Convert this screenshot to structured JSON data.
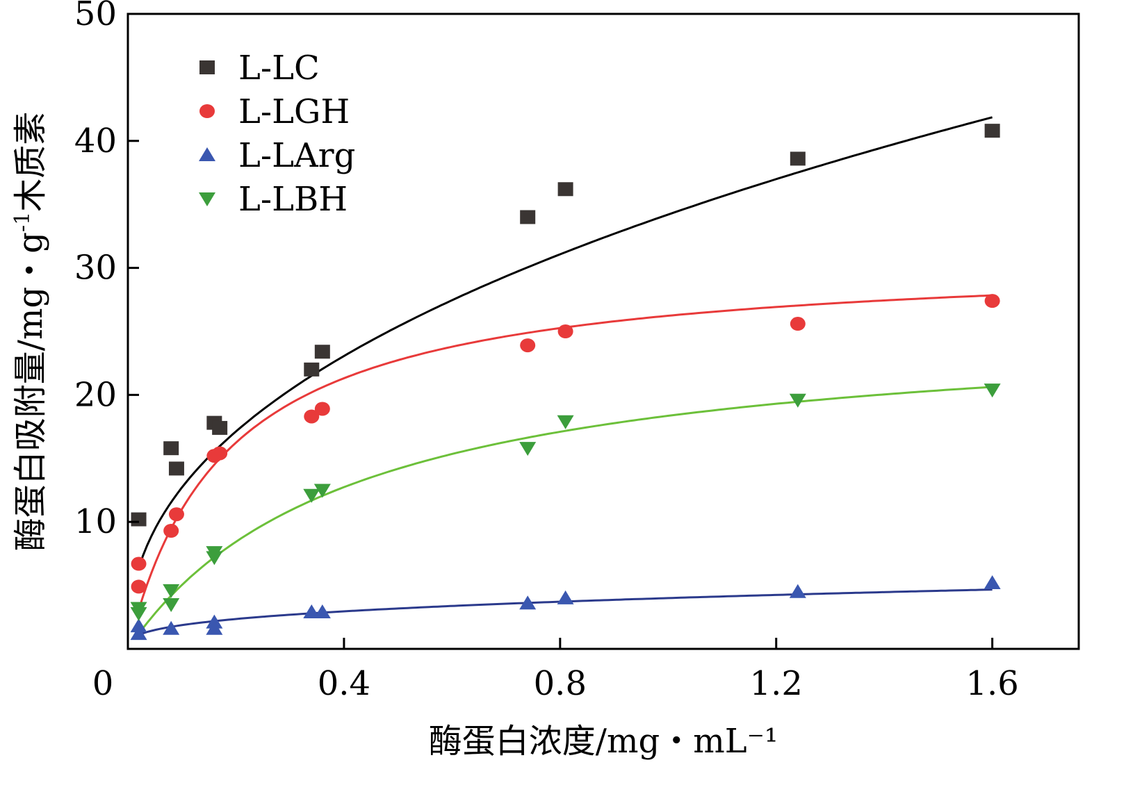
{
  "chart_data": {
    "type": "scatter",
    "title": "",
    "xlabel": "酶蛋白浓度/mg・mL⁻¹",
    "ylabel_main": "酶蛋白吸附量/mg・g",
    "ylabel_sup": "-1",
    "ylabel_tail": "木质素",
    "xlim": [
      0,
      1.76
    ],
    "ylim": [
      0,
      50
    ],
    "x_ticks": [
      0.4,
      0.8,
      1.2,
      1.6
    ],
    "x_tick_labels": [
      "0.4",
      "0.8",
      "1.2",
      "1.6"
    ],
    "y_ticks": [
      10,
      20,
      30,
      40,
      50
    ],
    "y_tick_labels": [
      "10",
      "20",
      "30",
      "40",
      "50"
    ],
    "origin_label": "0",
    "grid": false,
    "legend_position": "top-left",
    "series": [
      {
        "name": "L-LC",
        "marker": "square",
        "color": "#3a3533",
        "fit_color": "#000000",
        "fit": {
          "model": "freundlich",
          "k": 34.2,
          "n": 0.43
        },
        "x": [
          0.02,
          0.08,
          0.09,
          0.16,
          0.17,
          0.34,
          0.36,
          0.74,
          0.81,
          1.24,
          1.6
        ],
        "y": [
          10.2,
          15.8,
          14.2,
          17.8,
          17.4,
          22.0,
          23.4,
          34.0,
          36.2,
          38.6,
          40.8
        ]
      },
      {
        "name": "L-LGH",
        "marker": "circle",
        "color": "#e83a3a",
        "fit_color": "#e83a3a",
        "fit": {
          "model": "langmuir",
          "qm": 31.0,
          "kl": 5.5
        },
        "x": [
          0.02,
          0.02,
          0.08,
          0.09,
          0.16,
          0.17,
          0.34,
          0.36,
          0.74,
          0.81,
          1.24,
          1.6
        ],
        "y": [
          4.9,
          6.7,
          9.3,
          10.6,
          15.2,
          15.4,
          18.3,
          18.9,
          23.9,
          25.0,
          25.6,
          27.4
        ]
      },
      {
        "name": "L-LArg",
        "marker": "triangle-up",
        "color": "#3a57b0",
        "fit_color": "#2b3a8c",
        "fit": {
          "model": "freundlich",
          "k": 4.0,
          "n": 0.33
        },
        "x": [
          0.02,
          0.02,
          0.08,
          0.16,
          0.16,
          0.34,
          0.36,
          0.74,
          0.81,
          1.24,
          1.6
        ],
        "y": [
          1.2,
          1.8,
          1.6,
          1.6,
          2.1,
          2.9,
          2.9,
          3.6,
          4.0,
          4.5,
          5.2
        ]
      },
      {
        "name": "L-LBH",
        "marker": "triangle-down",
        "color": "#3c9e3c",
        "fit_color": "#6cc03a",
        "fit": {
          "model": "langmuir",
          "qm": 26.0,
          "kl": 2.4
        },
        "x": [
          0.02,
          0.02,
          0.08,
          0.08,
          0.16,
          0.16,
          0.34,
          0.36,
          0.74,
          0.81,
          1.24,
          1.6
        ],
        "y": [
          2.8,
          3.2,
          3.5,
          4.6,
          7.2,
          7.6,
          12.1,
          12.5,
          15.8,
          17.9,
          19.6,
          20.4
        ]
      }
    ]
  }
}
